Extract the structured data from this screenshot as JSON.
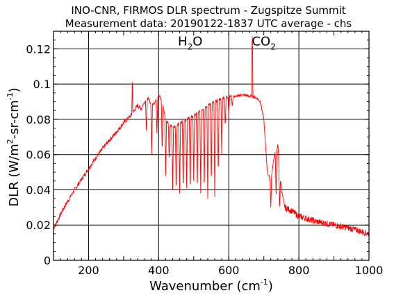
{
  "chart_data": {
    "type": "line",
    "title": "INO-CNR, FIRMOS DLR spectrum - Zugspitze Summit",
    "subtitle": "Measurement data: 20190122-1837 UTC average - chs",
    "xlabel": "Wavenumber (cm",
    "xlabel_sup": "-1",
    "xlabel_end": ")",
    "ylabel": "DLR (W/m",
    "ylabel_sup1": "2",
    "ylabel_mid": "-sr-cm",
    "ylabel_sup2": "-1",
    "ylabel_end": ")",
    "xlim": [
      100,
      1000
    ],
    "ylim": [
      0,
      0.13
    ],
    "x_ticks": [
      200,
      400,
      600,
      800,
      1000
    ],
    "y_ticks": [
      0,
      0.02,
      0.04,
      0.06,
      0.08,
      0.1,
      0.12
    ],
    "x_tick_labels": [
      "200",
      "400",
      "600",
      "800",
      "1000"
    ],
    "y_tick_labels": [
      "0",
      "0.02",
      "0.04",
      "0.06",
      "0.08",
      "0.1",
      "0.12"
    ],
    "grid": true,
    "annotations": [
      {
        "text": "H",
        "sub": "2",
        "tail": "O",
        "x": 490,
        "y": 0.122
      },
      {
        "text": "CO",
        "sub": "2",
        "tail": "",
        "x": 700,
        "y": 0.122
      }
    ],
    "series": [
      {
        "color": "#ff0000",
        "x": [
          100,
          130,
          160,
          190,
          220,
          250,
          280,
          300,
          320,
          330,
          340,
          350,
          360,
          370,
          380,
          390,
          400,
          410,
          420,
          440,
          460,
          480,
          500,
          520,
          540,
          560,
          580,
          600,
          620,
          640,
          660,
          670,
          680,
          690,
          700,
          710,
          720,
          730,
          740,
          750,
          760,
          780,
          800,
          850,
          900,
          950,
          1000
        ],
        "y": [
          0.018,
          0.03,
          0.04,
          0.049,
          0.058,
          0.066,
          0.073,
          0.078,
          0.082,
          0.085,
          0.088,
          0.086,
          0.09,
          0.092,
          0.088,
          0.09,
          0.094,
          0.09,
          0.08,
          0.075,
          0.078,
          0.08,
          0.082,
          0.085,
          0.088,
          0.09,
          0.092,
          0.093,
          0.093,
          0.094,
          0.093,
          0.093,
          0.092,
          0.09,
          0.08,
          0.05,
          0.045,
          0.06,
          0.065,
          0.04,
          0.03,
          0.028,
          0.025,
          0.022,
          0.02,
          0.018,
          0.015
        ],
        "spike": [
          {
            "x": 667,
            "y": 0.129
          },
          {
            "x": 325,
            "y": 0.103
          }
        ],
        "absorption_dips": [
          {
            "x": 365,
            "y": 0.072
          },
          {
            "x": 380,
            "y": 0.06
          },
          {
            "x": 395,
            "y": 0.07
          },
          {
            "x": 410,
            "y": 0.06
          },
          {
            "x": 420,
            "y": 0.048
          },
          {
            "x": 430,
            "y": 0.055
          },
          {
            "x": 440,
            "y": 0.04
          },
          {
            "x": 450,
            "y": 0.036
          },
          {
            "x": 460,
            "y": 0.038
          },
          {
            "x": 470,
            "y": 0.037
          },
          {
            "x": 480,
            "y": 0.041
          },
          {
            "x": 490,
            "y": 0.036
          },
          {
            "x": 500,
            "y": 0.045
          },
          {
            "x": 510,
            "y": 0.036
          },
          {
            "x": 520,
            "y": 0.038
          },
          {
            "x": 530,
            "y": 0.036
          },
          {
            "x": 540,
            "y": 0.035
          },
          {
            "x": 550,
            "y": 0.04
          },
          {
            "x": 560,
            "y": 0.036
          },
          {
            "x": 570,
            "y": 0.046
          },
          {
            "x": 580,
            "y": 0.06
          },
          {
            "x": 590,
            "y": 0.075
          },
          {
            "x": 600,
            "y": 0.082
          },
          {
            "x": 610,
            "y": 0.087
          },
          {
            "x": 720,
            "y": 0.03
          },
          {
            "x": 735,
            "y": 0.035
          },
          {
            "x": 745,
            "y": 0.028
          }
        ]
      }
    ]
  }
}
